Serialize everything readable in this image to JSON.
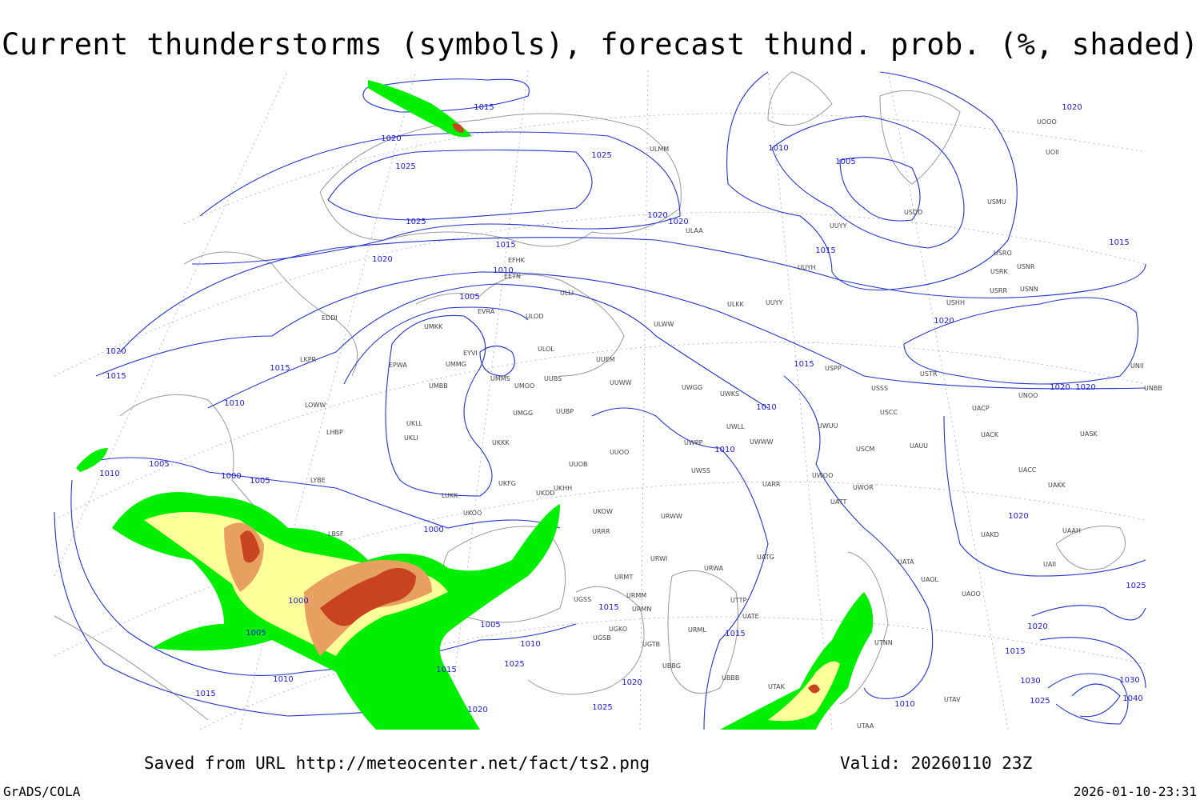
{
  "title": "Current thunderstorms (symbols), forecast thund. prob. (%, shaded)",
  "footer": {
    "source": "Saved from URL http://meteocenter.net/fact/ts2.png",
    "valid": "Valid: 20260110 23Z",
    "software": "GrADS/COLA",
    "timestamp": "2026-01-10-23:31"
  },
  "isobar_labels": [
    1015,
    1020,
    1025,
    1025,
    1025,
    1020,
    1020,
    1015,
    1020,
    1010,
    1005,
    1020,
    1015,
    1015,
    1010,
    1010,
    1005,
    1015,
    1020,
    1015,
    1010,
    1010,
    1020,
    1020,
    1020,
    1015,
    1005,
    1010,
    1000,
    1005,
    1000,
    1020,
    1000,
    1005,
    1005,
    1015,
    1010,
    1015,
    1025,
    1010,
    1020,
    1025,
    1015,
    1020,
    1015,
    1010,
    1025,
    1020,
    1015,
    1030,
    1030,
    1025,
    1040
  ],
  "station_labels": [
    "ULMM",
    "ULAA",
    "EFHK",
    "EETN",
    "ULLI",
    "EVRA",
    "ULOD",
    "UMKK",
    "EDDI",
    "EYVI",
    "ULOL",
    "UUEM",
    "EPWA",
    "UMMG",
    "LKPR",
    "UMMS",
    "UMOO",
    "UUBS",
    "UMBB",
    "UUWW",
    "UWGG",
    "UWKS",
    "LOWW",
    "UMGG",
    "UUBP",
    "UKLL",
    "UKLI",
    "LHBP",
    "UKKK",
    "UWLL",
    "UWWW",
    "UUOO",
    "UWPP",
    "UUOB",
    "LYBE",
    "UKHH",
    "UWSS",
    "UKFG",
    "UKDD",
    "LUKK",
    "URWW",
    "UKOW",
    "URRR",
    "UKOO",
    "LBSF",
    "URWI",
    "UATG",
    "URWA",
    "URMT",
    "URMM",
    "URMN",
    "UGSS",
    "UGSB",
    "UGKO",
    "UGTB",
    "UBBG",
    "UBBB",
    "URML",
    "UTAK",
    "UTTP",
    "UATE",
    "UATT",
    "UWOR",
    "UWOO",
    "UARR",
    "UWUU",
    "USCM",
    "UAUU",
    "USCC",
    "USSS",
    "USPP",
    "USTR",
    "UACC",
    "UAKK",
    "UAKD",
    "UATA",
    "UAOL",
    "UAOO",
    "UTNN",
    "UTAA",
    "UTAV",
    "UAII",
    "UAAH",
    "UASK",
    "UACK",
    "UACP",
    "UNOO",
    "UNBB",
    "UNII",
    "USHH",
    "USRR",
    "USNN",
    "USRK",
    "USNR",
    "USRO",
    "USMU",
    "USDD",
    "UUYY",
    "UUYH",
    "UUYY",
    "ULKK",
    "ULWW",
    "UOOO",
    "UOII"
  ]
}
